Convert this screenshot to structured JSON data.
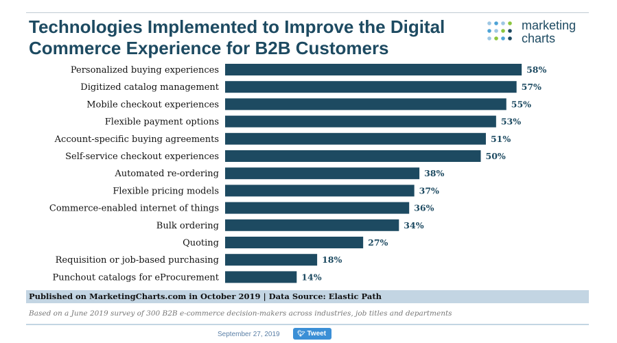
{
  "title": "Technologies Implemented to Improve the Digital Commerce Experience for B2B Customers",
  "logo": {
    "line1": "marketing",
    "line2": "charts",
    "dot_colors": [
      "#9ec7e3",
      "#4da3d6",
      "#8cc63f",
      "#1d4a61"
    ]
  },
  "chart_data": {
    "type": "bar",
    "orientation": "horizontal",
    "categories": [
      "Personalized buying experiences",
      "Digitized catalog management",
      "Mobile checkout experiences",
      "Flexible payment options",
      "Account-specific buying agreements",
      "Self-service checkout experiences",
      "Automated re-ordering",
      "Flexible pricing models",
      "Commerce-enabled internet of things",
      "Bulk ordering",
      "Quoting",
      "Requisition or job-based purchasing",
      "Punchout catalogs for eProcurement"
    ],
    "values": [
      58,
      57,
      55,
      53,
      51,
      50,
      38,
      37,
      36,
      34,
      27,
      18,
      14
    ],
    "value_suffix": "%",
    "xlim": [
      0,
      60
    ],
    "grid": false,
    "bar_color": "#1d4a61"
  },
  "footer": {
    "source": "Published on MarketingCharts.com in October 2019 | Data Source: Elastic Path",
    "note": "Based on a June 2019 survey of 300 B2B e-commerce decision-makers across industries, job titles and departments",
    "date": "September 27, 2019",
    "tweet_label": "Tweet"
  }
}
